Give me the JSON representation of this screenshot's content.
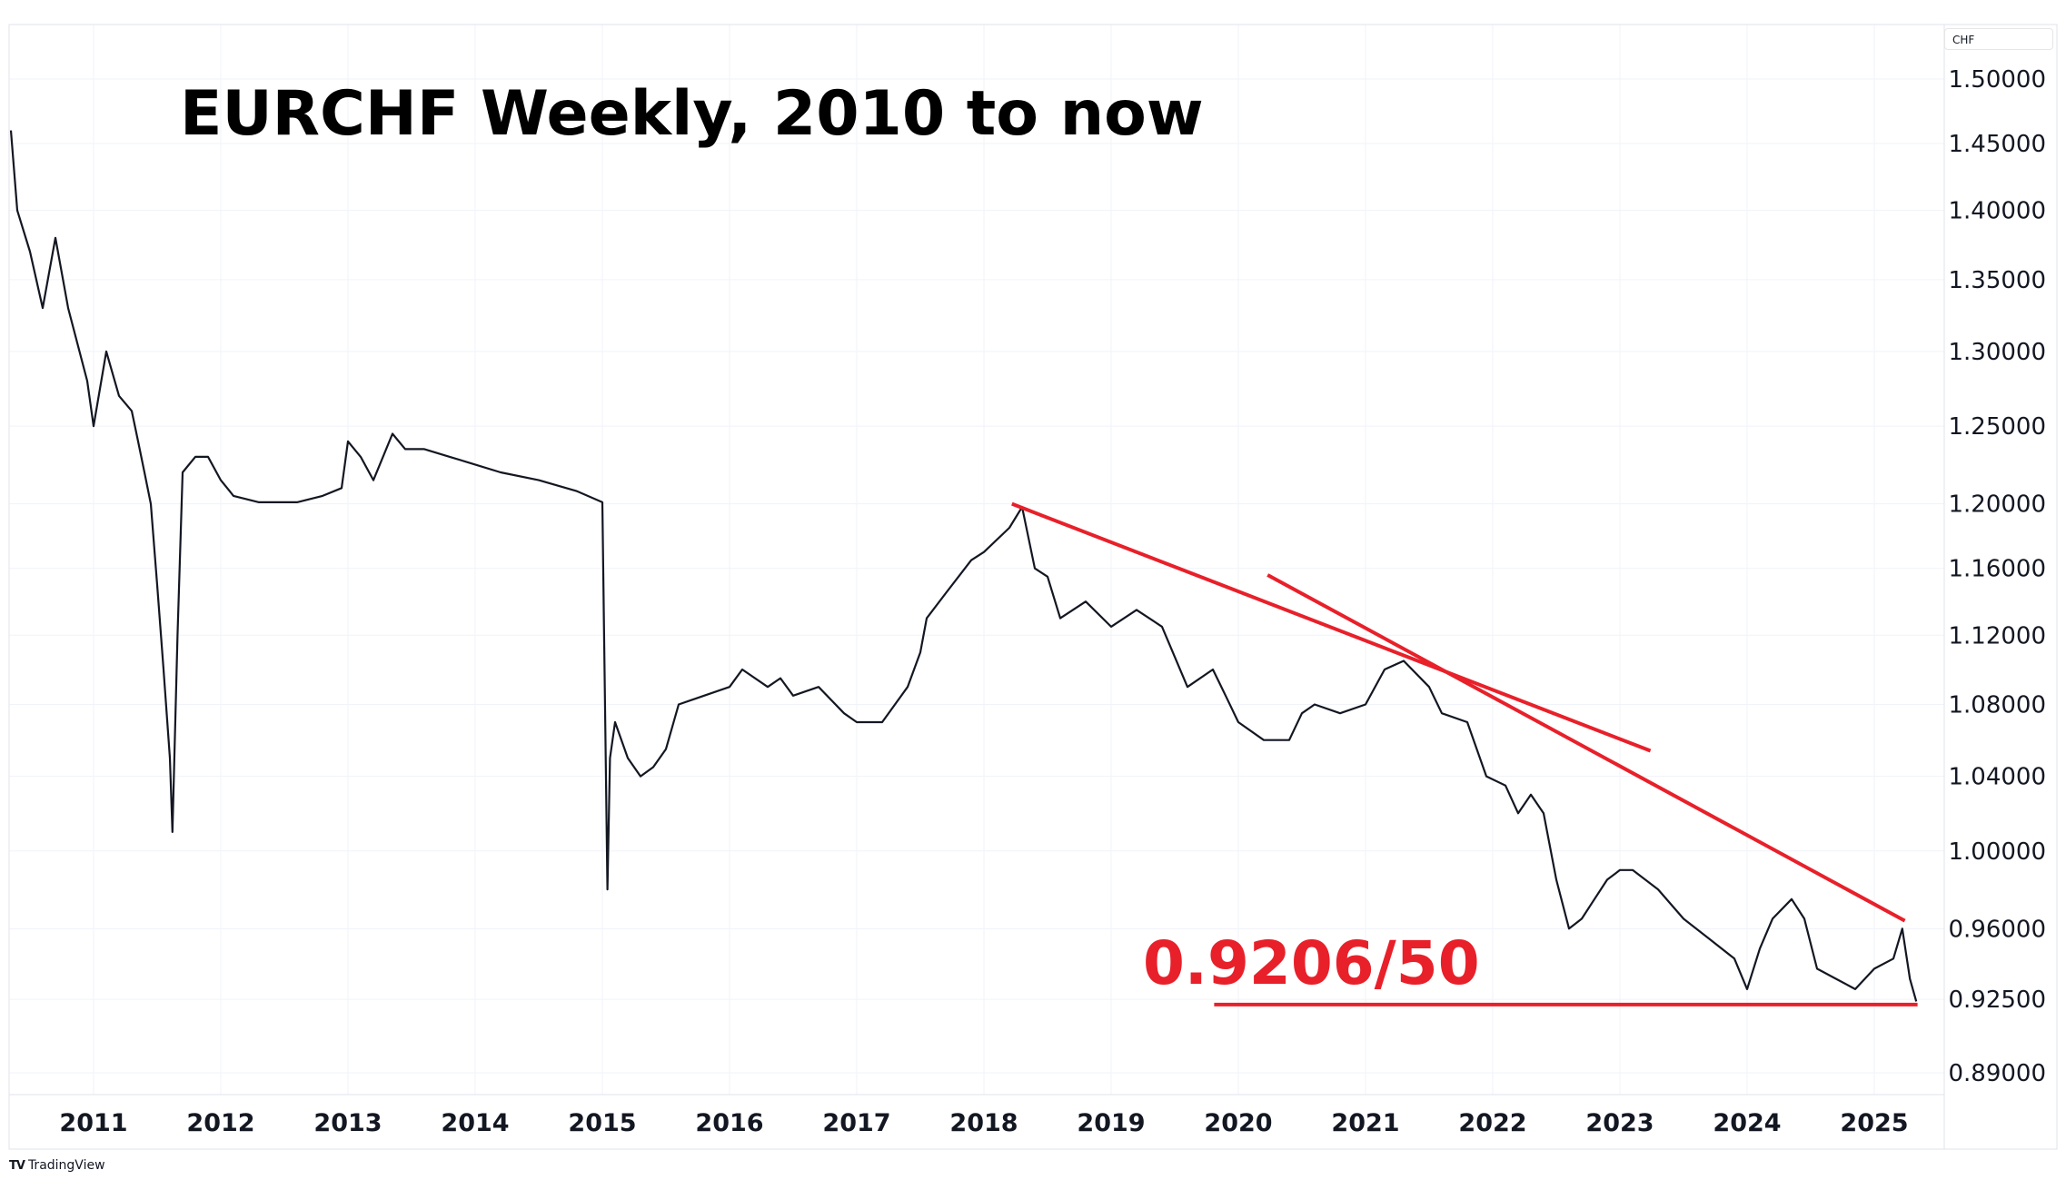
{
  "title": "EURCHF Weekly, 2010 to now",
  "annotation": "0.9206/50",
  "branding": "TradingView",
  "chart_data": {
    "type": "line",
    "symbol_unit": "CHF",
    "y_scale": "log",
    "ylim": [
      0.88,
      1.515
    ],
    "xlim": [
      2010.25,
      2025.5
    ],
    "grid": true,
    "y_ticks": [
      1.5,
      1.45,
      1.4,
      1.35,
      1.3,
      1.25,
      1.2,
      1.16,
      1.12,
      1.08,
      1.04,
      1.0,
      0.96,
      0.925,
      0.89
    ],
    "y_tick_labels": [
      "1.50000",
      "1.45000",
      "1.40000",
      "1.35000",
      "1.30000",
      "1.25000",
      "1.20000",
      "1.16000",
      "1.12000",
      "1.08000",
      "1.04000",
      "1.00000",
      "0.96000",
      "0.92500",
      "0.89000"
    ],
    "x_ticks": [
      2011,
      2012,
      2013,
      2014,
      2015,
      2016,
      2017,
      2018,
      2019,
      2020,
      2021,
      2022,
      2023,
      2024,
      2025
    ],
    "x_tick_labels": [
      "2011",
      "2012",
      "2013",
      "2014",
      "2015",
      "2016",
      "2017",
      "2018",
      "2019",
      "2020",
      "2021",
      "2022",
      "2023",
      "2024",
      "2025"
    ],
    "series_color": "#131722",
    "series": [
      {
        "x": [
          2010.35,
          2010.4,
          2010.5,
          2010.6,
          2010.7,
          2010.8,
          2010.95,
          2011.0,
          2011.1,
          2011.2,
          2011.3,
          2011.35,
          2011.4,
          2011.45,
          2011.5,
          2011.55,
          2011.6,
          2011.62,
          2011.66,
          2011.7,
          2011.8,
          2011.9,
          2012.0,
          2012.1,
          2012.3,
          2012.6,
          2012.8,
          2012.95,
          2013.0,
          2013.1,
          2013.2,
          2013.35,
          2013.45,
          2013.6,
          2013.8,
          2014.0,
          2014.2,
          2014.5,
          2014.8,
          2015.0,
          2015.04,
          2015.06,
          2015.1,
          2015.2,
          2015.3,
          2015.4,
          2015.5,
          2015.6,
          2015.8,
          2016.0,
          2016.1,
          2016.3,
          2016.4,
          2016.5,
          2016.7,
          2016.9,
          2017.0,
          2017.2,
          2017.4,
          2017.5,
          2017.55,
          2017.7,
          2017.9,
          2018.0,
          2018.2,
          2018.3,
          2018.4,
          2018.5,
          2018.6,
          2018.8,
          2019.0,
          2019.2,
          2019.4,
          2019.6,
          2019.8,
          2019.9,
          2020.0,
          2020.2,
          2020.4,
          2020.5,
          2020.6,
          2020.8,
          2021.0,
          2021.15,
          2021.3,
          2021.5,
          2021.6,
          2021.8,
          2021.95,
          2022.1,
          2022.2,
          2022.3,
          2022.4,
          2022.5,
          2022.6,
          2022.7,
          2022.8,
          2022.9,
          2023.0,
          2023.1,
          2023.3,
          2023.5,
          2023.7,
          2023.9,
          2024.0,
          2024.1,
          2024.2,
          2024.35,
          2024.45,
          2024.55,
          2024.7,
          2024.85,
          2025.0,
          2025.15,
          2025.22,
          2025.28,
          2025.33
        ],
        "y": [
          1.46,
          1.4,
          1.37,
          1.33,
          1.38,
          1.33,
          1.28,
          1.25,
          1.3,
          1.27,
          1.26,
          1.24,
          1.22,
          1.2,
          1.15,
          1.1,
          1.05,
          1.01,
          1.12,
          1.22,
          1.23,
          1.23,
          1.215,
          1.205,
          1.201,
          1.201,
          1.205,
          1.21,
          1.24,
          1.23,
          1.215,
          1.245,
          1.235,
          1.235,
          1.23,
          1.225,
          1.22,
          1.215,
          1.208,
          1.201,
          0.98,
          1.05,
          1.07,
          1.05,
          1.04,
          1.045,
          1.055,
          1.08,
          1.085,
          1.09,
          1.1,
          1.09,
          1.095,
          1.085,
          1.09,
          1.075,
          1.07,
          1.07,
          1.09,
          1.11,
          1.13,
          1.145,
          1.165,
          1.17,
          1.185,
          1.198,
          1.16,
          1.155,
          1.13,
          1.14,
          1.125,
          1.135,
          1.125,
          1.09,
          1.1,
          1.085,
          1.07,
          1.06,
          1.06,
          1.075,
          1.08,
          1.075,
          1.08,
          1.1,
          1.105,
          1.09,
          1.075,
          1.07,
          1.04,
          1.035,
          1.02,
          1.03,
          1.02,
          0.985,
          0.96,
          0.965,
          0.975,
          0.985,
          0.99,
          0.99,
          0.98,
          0.965,
          0.955,
          0.945,
          0.93,
          0.95,
          0.965,
          0.975,
          0.965,
          0.94,
          0.935,
          0.93,
          0.94,
          0.945,
          0.96,
          0.935,
          0.924
        ]
      }
    ],
    "annotations": {
      "color": "#e8202a",
      "trendlines": [
        {
          "from": [
            2018.22,
            1.2
          ],
          "to": [
            2023.24,
            1.054
          ]
        },
        {
          "from": [
            2020.23,
            1.156
          ],
          "to": [
            2025.24,
            0.964
          ]
        },
        {
          "from": [
            2019.81,
            0.9225
          ],
          "to": [
            2025.34,
            0.9225
          ]
        }
      ]
    }
  }
}
